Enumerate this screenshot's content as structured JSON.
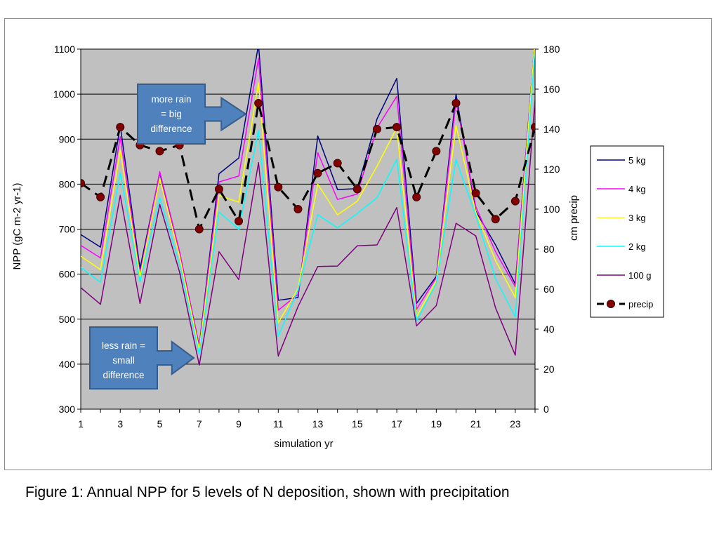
{
  "caption": "Figure 1: Annual NPP for 5 levels of N deposition, shown with precipitation",
  "chart_data": {
    "type": "line",
    "xlabel": "simulation yr",
    "ylabel": "NPP (gC m-2 yr-1)",
    "y2label": "cm precip",
    "xlim": [
      1,
      24
    ],
    "ylim": [
      300,
      1100
    ],
    "y2lim": [
      0,
      180
    ],
    "x_ticks": [
      "1",
      "3",
      "5",
      "7",
      "9",
      "11",
      "13",
      "15",
      "17",
      "19",
      "21",
      "23"
    ],
    "y_ticks": [
      "300",
      "400",
      "500",
      "600",
      "700",
      "800",
      "900",
      "1000",
      "1100"
    ],
    "y2_ticks": [
      "0",
      "20",
      "40",
      "60",
      "80",
      "100",
      "120",
      "140",
      "160",
      "180"
    ],
    "plot_background": "#c0c0c0",
    "grid": true,
    "legend_position": "right",
    "x": [
      1,
      2,
      3,
      4,
      5,
      6,
      7,
      8,
      9,
      10,
      11,
      12,
      13,
      14,
      15,
      16,
      17,
      18,
      19,
      20,
      21,
      22,
      23,
      24
    ],
    "series": [
      {
        "name": "5 kg",
        "color": "#000080",
        "axis": "left",
        "values": [
          688,
          660,
          930,
          612,
          825,
          650,
          440,
          823,
          858,
          1110,
          542,
          548,
          907,
          788,
          790,
          945,
          1035,
          535,
          595,
          1000,
          740,
          665,
          578,
          1120
        ]
      },
      {
        "name": "4 kg",
        "color": "#ff00ff",
        "axis": "left",
        "values": [
          664,
          636,
          905,
          600,
          828,
          650,
          438,
          805,
          818,
          1080,
          520,
          555,
          870,
          766,
          778,
          925,
          995,
          522,
          592,
          985,
          750,
          650,
          572,
          1120
        ]
      },
      {
        "name": "3 kg",
        "color": "#ffff00",
        "axis": "left",
        "values": [
          640,
          610,
          875,
          595,
          812,
          640,
          432,
          775,
          760,
          1025,
          492,
          568,
          800,
          732,
          762,
          840,
          925,
          505,
          585,
          930,
          738,
          630,
          548,
          1120
        ]
      },
      {
        "name": "2 kg",
        "color": "#00ffff",
        "axis": "left",
        "values": [
          615,
          582,
          825,
          583,
          770,
          622,
          422,
          738,
          700,
          920,
          462,
          565,
          732,
          703,
          735,
          770,
          855,
          495,
          580,
          855,
          730,
          590,
          505,
          1100
        ]
      },
      {
        "name": "100 g",
        "color": "#800080",
        "axis": "left",
        "values": [
          570,
          533,
          775,
          535,
          755,
          605,
          398,
          650,
          588,
          848,
          418,
          528,
          617,
          618,
          663,
          665,
          748,
          485,
          530,
          713,
          685,
          525,
          420,
          988
        ]
      },
      {
        "name": "precip",
        "color": "#000000",
        "axis": "right",
        "marker_color": "#800000",
        "dashed": true,
        "values": [
          113,
          106,
          141,
          132,
          129,
          132,
          90,
          110,
          94,
          153,
          111,
          100,
          118,
          123,
          110,
          140,
          141,
          106,
          129,
          153,
          108,
          95,
          104,
          141
        ]
      }
    ],
    "annotations": [
      {
        "text": [
          "more rain",
          "= big",
          "difference"
        ]
      },
      {
        "text": [
          "less rain =",
          "small",
          "difference"
        ]
      }
    ]
  }
}
